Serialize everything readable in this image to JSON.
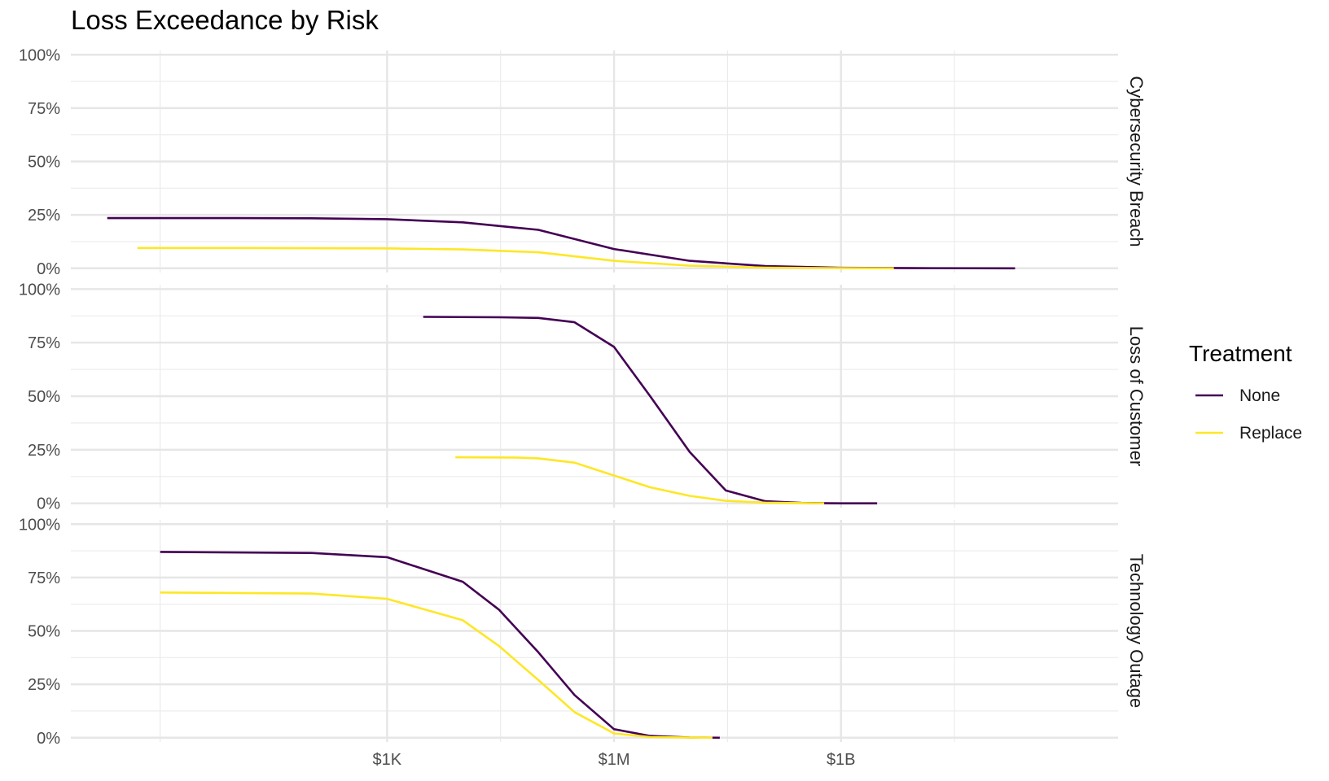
{
  "chart_data": {
    "type": "line",
    "title": "Loss Exceedance by Risk",
    "xlabel": "",
    "ylabel": "",
    "x_scale": "log10",
    "x_ticks": [
      {
        "value": 1000,
        "label": "$1K"
      },
      {
        "value": 1000000,
        "label": "$1M"
      },
      {
        "value": 1000000000,
        "label": "$1B"
      }
    ],
    "x_minor_ticks": [
      1,
      31623,
      31623000,
      31623000000
    ],
    "xlim": [
      0.066,
      4600000000000
    ],
    "y_ticks": [
      {
        "value": 0,
        "label": "0%"
      },
      {
        "value": 0.25,
        "label": "25%"
      },
      {
        "value": 0.5,
        "label": "50%"
      },
      {
        "value": 0.75,
        "label": "75%"
      },
      {
        "value": 1,
        "label": "100%"
      }
    ],
    "ylim": [
      -0.02,
      1.02
    ],
    "grid": true,
    "legend": {
      "title": "Treatment",
      "placement": "right",
      "entries": [
        {
          "name": "None",
          "color": "#440154"
        },
        {
          "name": "Replace",
          "color": "#FDE725"
        }
      ]
    },
    "panels": [
      {
        "label": "Cybersecurity Breach",
        "series": [
          {
            "name": "None",
            "color": "#440154",
            "x": [
              0.2,
              10,
              100,
              1000,
              10000,
              100000,
              1000000,
              10000000,
              100000000,
              1000000000,
              10000000000,
              200000000000
            ],
            "y": [
              0.235,
              0.235,
              0.234,
              0.23,
              0.215,
              0.18,
              0.09,
              0.035,
              0.01,
              0.002,
              0.0005,
              0
            ]
          },
          {
            "name": "Replace",
            "color": "#FDE725",
            "x": [
              0.5,
              10,
              100,
              1000,
              10000,
              100000,
              1000000,
              10000000,
              100000000,
              1000000000,
              5000000000
            ],
            "y": [
              0.095,
              0.095,
              0.094,
              0.093,
              0.088,
              0.075,
              0.035,
              0.012,
              0.003,
              0.0005,
              0
            ]
          }
        ]
      },
      {
        "label": "Loss of Customer",
        "series": [
          {
            "name": "None",
            "color": "#440154",
            "x": [
              3000,
              30000,
              100000,
              300000,
              1000000,
              3000000,
              10000000,
              30000000,
              100000000,
              300000000,
              1000000000,
              3000000000
            ],
            "y": [
              0.87,
              0.868,
              0.865,
              0.845,
              0.73,
              0.5,
              0.24,
              0.06,
              0.01,
              0.002,
              0.0002,
              0
            ]
          },
          {
            "name": "Replace",
            "color": "#FDE725",
            "x": [
              8000,
              50000,
              100000,
              300000,
              1000000,
              3000000,
              10000000,
              30000000,
              100000000,
              600000000
            ],
            "y": [
              0.215,
              0.214,
              0.21,
              0.19,
              0.13,
              0.075,
              0.035,
              0.012,
              0.003,
              0
            ]
          }
        ]
      },
      {
        "label": "Technology Outage",
        "series": [
          {
            "name": "None",
            "color": "#440154",
            "x": [
              1,
              100,
              1000,
              10000,
              30000,
              100000,
              300000,
              1000000,
              3000000,
              10000000,
              25000000
            ],
            "y": [
              0.87,
              0.865,
              0.845,
              0.73,
              0.6,
              0.4,
              0.2,
              0.04,
              0.008,
              0.001,
              0
            ]
          },
          {
            "name": "Replace",
            "color": "#FDE725",
            "x": [
              1,
              100,
              1000,
              10000,
              30000,
              100000,
              300000,
              1000000,
              3000000,
              10000000,
              20000000
            ],
            "y": [
              0.68,
              0.675,
              0.65,
              0.55,
              0.43,
              0.27,
              0.12,
              0.02,
              0.003,
              0.0005,
              0
            ]
          }
        ]
      }
    ]
  }
}
